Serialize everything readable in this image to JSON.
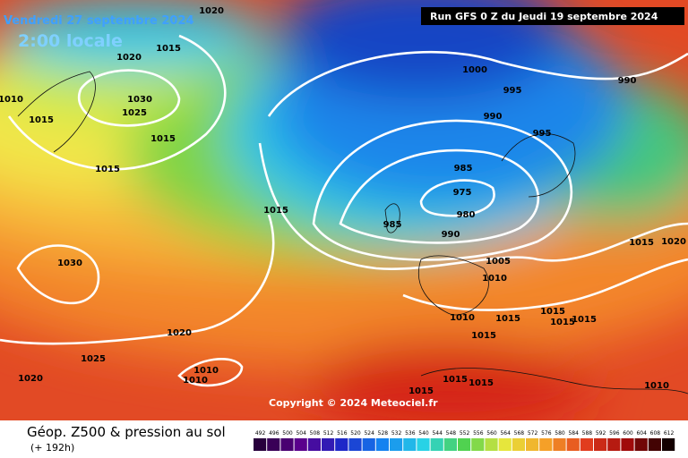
{
  "header": {
    "valid_time": "Vendredi 27 septembre 2024",
    "local_time": "2:00 locale",
    "run": "Run GFS 0 Z du Jeudi 19 septembre 2024"
  },
  "copyright": "Copyright © 2024 Meteociel.fr",
  "legend": {
    "title": "Géop. Z500 & pression au sol",
    "lead": "(+ 192h)",
    "scale": [
      "492",
      "496",
      "500",
      "504",
      "508",
      "512",
      "516",
      "520",
      "524",
      "528",
      "532",
      "536",
      "540",
      "544",
      "548",
      "552",
      "556",
      "560",
      "564",
      "568",
      "572",
      "576",
      "580",
      "584",
      "588",
      "592",
      "596",
      "600",
      "604",
      "608",
      "612"
    ]
  },
  "isobar_labels": [
    "1020",
    "1015",
    "1020",
    "1010",
    "1030",
    "1025",
    "1015",
    "1015",
    "1015",
    "1015",
    "1000",
    "995",
    "990",
    "990",
    "995",
    "985",
    "975",
    "980",
    "985",
    "990",
    "1005",
    "1010",
    "1030",
    "1020",
    "1025",
    "1010",
    "1010",
    "1020",
    "1010",
    "1015",
    "1015",
    "1015",
    "1015",
    "1015",
    "1015",
    "1020",
    "1015",
    "1015",
    "1015",
    "1010"
  ]
}
